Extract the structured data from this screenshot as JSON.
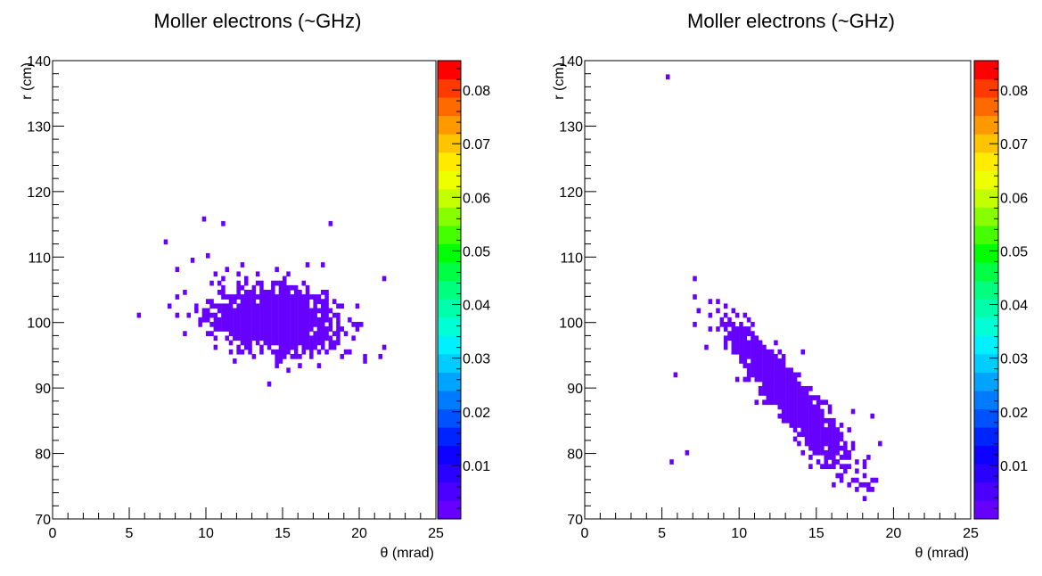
{
  "chart_data": [
    {
      "type": "heatmap",
      "title": "Moller electrons (~GHz)",
      "xlabel": "θ (mrad)",
      "ylabel": "r (cm)",
      "xlim": [
        0,
        25
      ],
      "ylim": [
        70,
        140
      ],
      "x_ticks": [
        0,
        5,
        10,
        15,
        20,
        25
      ],
      "y_ticks": [
        70,
        80,
        90,
        100,
        110,
        120,
        130,
        140
      ],
      "colorbar": {
        "ticks": [
          "0.01",
          "0.02",
          "0.03",
          "0.04",
          "0.05",
          "0.06",
          "0.07",
          "0.08"
        ],
        "tick_values": [
          0.01,
          0.02,
          0.03,
          0.04,
          0.05,
          0.06,
          0.07,
          0.08
        ],
        "min": 0.0,
        "max": 0.0855,
        "palette": [
          "#6600ff",
          "#4b00ff",
          "#2a00ff",
          "#0d00ff",
          "#0024ff",
          "#0051ff",
          "#007bff",
          "#00a4ff",
          "#00ccff",
          "#00f0ff",
          "#00ffd5",
          "#00ffaa",
          "#00ff7f",
          "#00ff44",
          "#00ff00",
          "#44ff00",
          "#88ff00",
          "#c4ff00",
          "#eeff00",
          "#ffea00",
          "#ffc400",
          "#ff9900",
          "#ff6a00",
          "#ff3a00",
          "#ff0000"
        ]
      },
      "data_color": "#6600ff",
      "blobs": [
        {
          "theta": 14.5,
          "r": 100.5,
          "sigma_theta": 2.0,
          "sigma_r": 2.4,
          "corr": -0.15,
          "count": 1400
        }
      ],
      "outliers": [
        [
          9.8,
          116
        ],
        [
          11.0,
          115.2
        ],
        [
          18.0,
          115.2
        ],
        [
          7.3,
          112.1
        ],
        [
          5.6,
          100.9
        ],
        [
          21.6,
          106.9
        ],
        [
          8.1,
          103.8
        ],
        [
          14.1,
          90.7
        ],
        [
          9.0,
          109.5
        ],
        [
          10.0,
          110.3
        ],
        [
          17.5,
          108.5
        ],
        [
          16.7,
          108.8
        ]
      ]
    },
    {
      "type": "heatmap",
      "title": "Moller electrons (~GHz)",
      "xlabel": "θ  (mrad)",
      "ylabel": "r (cm)",
      "xlim": [
        0,
        25
      ],
      "ylim": [
        70,
        140
      ],
      "x_ticks": [
        0,
        5,
        10,
        15,
        20,
        25
      ],
      "y_ticks": [
        70,
        80,
        90,
        100,
        110,
        120,
        130,
        140
      ],
      "colorbar": {
        "ticks": [
          "0.01",
          "0.02",
          "0.03",
          "0.04",
          "0.05",
          "0.06",
          "0.07",
          "0.08"
        ],
        "tick_values": [
          0.01,
          0.02,
          0.03,
          0.04,
          0.05,
          0.06,
          0.07,
          0.08
        ],
        "min": 0.0,
        "max": 0.0855,
        "palette": [
          "#6600ff",
          "#4b00ff",
          "#2a00ff",
          "#0d00ff",
          "#0024ff",
          "#0051ff",
          "#007bff",
          "#00a4ff",
          "#00ccff",
          "#00f0ff",
          "#00ffd5",
          "#00ffaa",
          "#00ff7f",
          "#00ff44",
          "#00ff00",
          "#44ff00",
          "#88ff00",
          "#c4ff00",
          "#eeff00",
          "#ffea00",
          "#ffc400",
          "#ff9900",
          "#ff6a00",
          "#ff3a00",
          "#ff0000"
        ]
      },
      "data_color": "#6600ff",
      "blobs": [
        {
          "theta": 13.3,
          "r": 88.5,
          "sigma_theta": 1.9,
          "sigma_r": 5.3,
          "corr": -0.93,
          "count": 1300
        }
      ],
      "outliers": [
        [
          5.3,
          137.7
        ],
        [
          5.9,
          91.9
        ],
        [
          6.6,
          79.9
        ],
        [
          5.7,
          78.4
        ],
        [
          9.1,
          97.1
        ],
        [
          14.2,
          95.8
        ],
        [
          17.3,
          86.3
        ],
        [
          19.1,
          81.8
        ],
        [
          18.5,
          85.7
        ],
        [
          7.9,
          96.0
        ]
      ]
    }
  ]
}
